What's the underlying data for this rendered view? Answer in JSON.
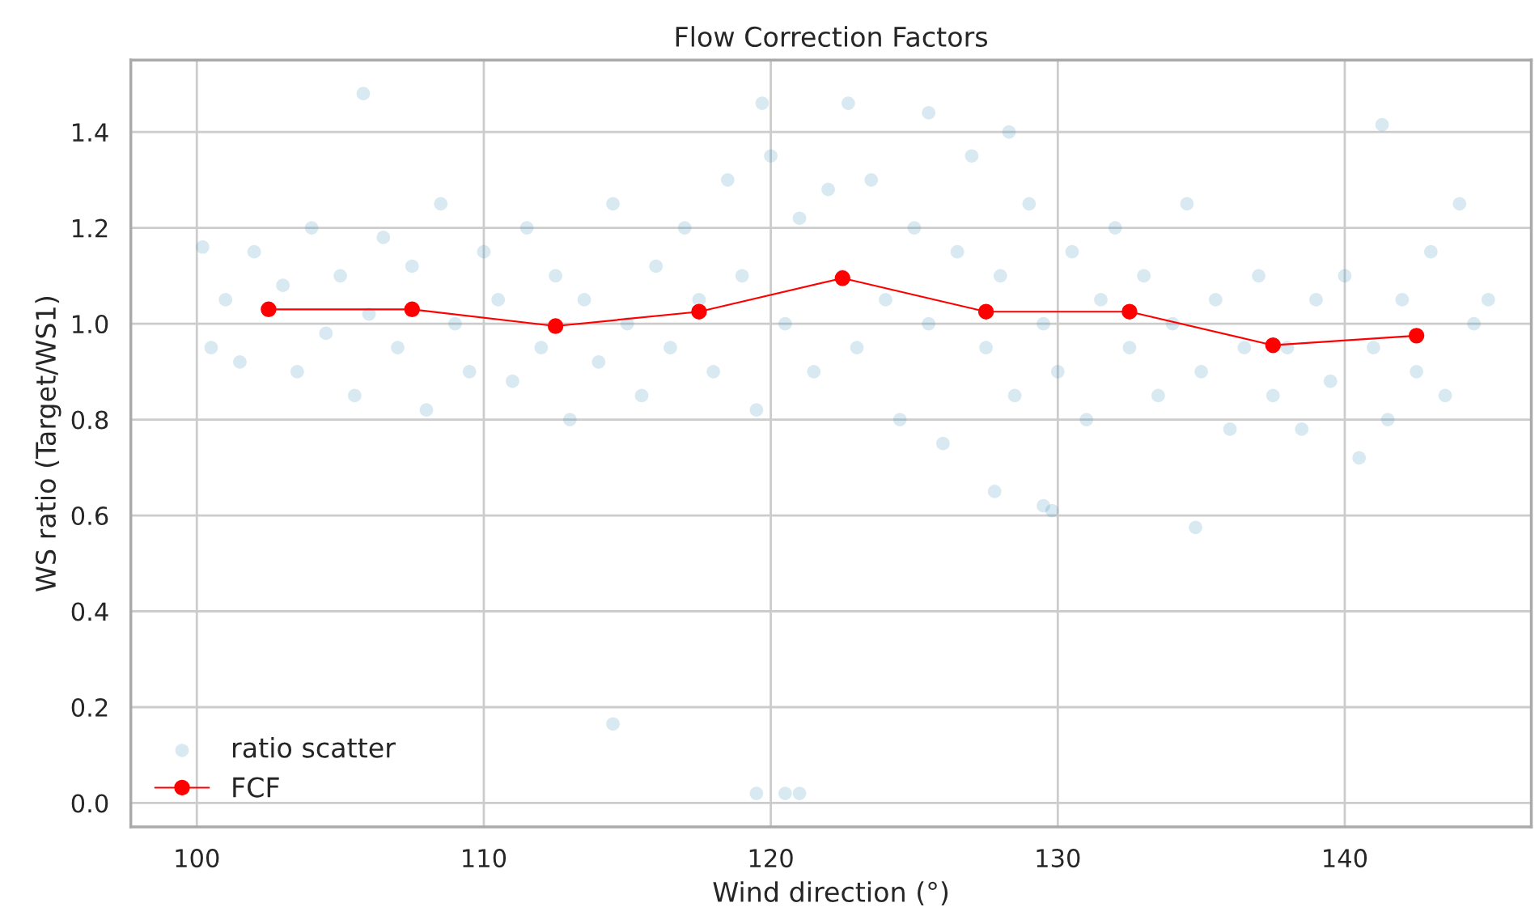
{
  "chart_data": {
    "type": "scatter",
    "title": "Flow Correction Factors",
    "xlabel": "Wind direction (°)",
    "ylabel": "WS ratio (Target/WS1)",
    "xlim": [
      97.7,
      146.5
    ],
    "xticks": [
      100,
      110,
      120,
      130,
      140
    ],
    "ylim": [
      -0.05,
      1.55
    ],
    "yticks": [
      {
        "value": 0,
        "label": "0.0"
      },
      0.2,
      0.4,
      0.6,
      0.8,
      {
        "value": 1,
        "label": "1.0"
      },
      1.2,
      1.4
    ],
    "grid": true,
    "legend": "bottom left",
    "series": [
      {
        "name": "ratio scatter",
        "color": "#3a8fb7",
        "marker": "circle",
        "x": [
          100.2,
          100.5,
          101,
          101.5,
          102,
          103,
          103.5,
          104,
          104.5,
          105,
          105.5,
          106,
          106.5,
          107,
          107.5,
          108,
          108.5,
          109,
          109.5,
          110,
          110.5,
          111,
          111.5,
          112,
          112.5,
          113,
          113.5,
          114,
          114.5,
          115,
          115.5,
          116,
          116.5,
          117,
          117.5,
          118,
          118.5,
          119,
          119.5,
          120,
          120.5,
          121,
          121.5,
          122,
          122.5,
          123,
          123.5,
          124,
          124.5,
          125,
          125.5,
          126,
          126.5,
          127,
          127.5,
          128,
          128.5,
          129,
          129.5,
          130,
          130.5,
          131,
          131.5,
          132,
          132.5,
          133,
          133.5,
          134,
          134.5,
          135,
          135.5,
          136,
          136.5,
          137,
          137.5,
          138,
          138.5,
          139,
          139.5,
          140,
          140.5,
          141,
          141.5,
          142,
          142.5,
          143,
          143.5,
          144,
          144.5,
          145,
          105.8,
          119.7,
          122.7,
          141.3,
          134.8,
          129.5,
          129.8,
          127.8,
          128.3,
          125.5,
          114.5,
          119.5,
          120.5,
          121
        ],
        "values": [
          1.16,
          0.95,
          1.05,
          0.92,
          1.15,
          1.08,
          0.9,
          1.2,
          0.98,
          1.1,
          0.85,
          1.02,
          1.18,
          0.95,
          1.12,
          0.82,
          1.25,
          1.0,
          0.9,
          1.15,
          1.05,
          0.88,
          1.2,
          0.95,
          1.1,
          0.8,
          1.05,
          0.92,
          1.25,
          1.0,
          0.85,
          1.12,
          0.95,
          1.2,
          1.05,
          0.9,
          1.3,
          1.1,
          0.82,
          1.35,
          1.0,
          1.22,
          0.9,
          1.28,
          1.1,
          0.95,
          1.3,
          1.05,
          0.8,
          1.2,
          1.0,
          0.75,
          1.15,
          1.35,
          0.95,
          1.1,
          0.85,
          1.25,
          1.0,
          0.9,
          1.15,
          0.8,
          1.05,
          1.2,
          0.95,
          1.1,
          0.85,
          1.0,
          1.25,
          0.9,
          1.05,
          0.78,
          0.95,
          1.1,
          0.85,
          0.95,
          0.78,
          1.05,
          0.88,
          1.1,
          0.72,
          0.95,
          0.8,
          1.05,
          0.9,
          1.15,
          0.85,
          1.25,
          1.0,
          1.05,
          1.48,
          1.46,
          1.46,
          1.415,
          0.575,
          0.62,
          0.61,
          0.65,
          1.4,
          1.44,
          0.165,
          0.02,
          0.02,
          0.02
        ]
      },
      {
        "name": "FCF",
        "type": "line",
        "color": "#ff0000",
        "marker": "circle",
        "line_style": "solid",
        "x": [
          102.5,
          107.5,
          112.5,
          117.5,
          122.5,
          127.5,
          132.5,
          137.5,
          142.5
        ],
        "values": [
          1.03,
          1.03,
          0.995,
          1.025,
          1.095,
          1.025,
          1.025,
          0.955,
          0.975
        ]
      }
    ]
  }
}
